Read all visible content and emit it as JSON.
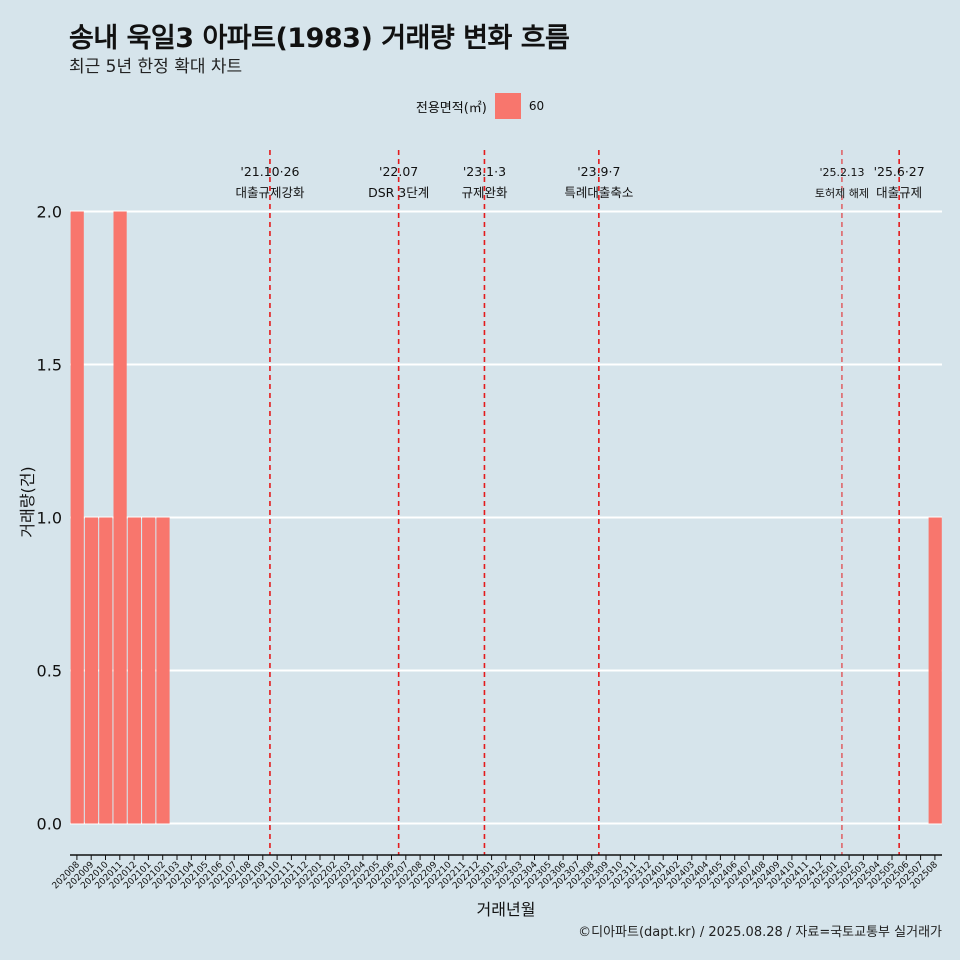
{
  "title": "송내 욱일3 아파트(1983) 거래량 변화 흐름",
  "subtitle": "최근 5년 한정 확대 차트",
  "caption": "©디아파트(dapt.kr) / 2025.08.28 / 자료=국토교통부 실거래가",
  "colors": {
    "bar": "#f8766d",
    "background": "#d6e4eb",
    "event_line": "#e41a1c",
    "grid": "#ffffff"
  },
  "chart_data": {
    "type": "bar",
    "xlabel": "거래년월",
    "ylabel": "거래량(건)",
    "ylim": [
      0,
      2
    ],
    "yticks": [
      0.0,
      0.5,
      1.0,
      1.5,
      2.0
    ],
    "legend": {
      "title": "전용면적(㎡)",
      "entries": [
        "60"
      ],
      "placement": "top"
    },
    "categories": [
      "202008",
      "202009",
      "202010",
      "202011",
      "202012",
      "202101",
      "202102",
      "202103",
      "202104",
      "202105",
      "202106",
      "202107",
      "202108",
      "202109",
      "202110",
      "202111",
      "202112",
      "202201",
      "202202",
      "202203",
      "202204",
      "202205",
      "202206",
      "202207",
      "202208",
      "202209",
      "202210",
      "202211",
      "202212",
      "202301",
      "202302",
      "202303",
      "202304",
      "202305",
      "202306",
      "202307",
      "202308",
      "202309",
      "202310",
      "202311",
      "202312",
      "202401",
      "202402",
      "202403",
      "202404",
      "202405",
      "202406",
      "202407",
      "202408",
      "202409",
      "202410",
      "202411",
      "202412",
      "202501",
      "202502",
      "202503",
      "202504",
      "202505",
      "202506",
      "202507",
      "202508"
    ],
    "series": [
      {
        "name": "60",
        "values": [
          2,
          1,
          1,
          2,
          1,
          1,
          1,
          0,
          0,
          0,
          0,
          0,
          0,
          0,
          0,
          0,
          0,
          0,
          0,
          0,
          0,
          0,
          0,
          0,
          0,
          0,
          0,
          0,
          0,
          0,
          0,
          0,
          0,
          0,
          0,
          0,
          0,
          0,
          0,
          0,
          0,
          0,
          0,
          0,
          0,
          0,
          0,
          0,
          0,
          0,
          0,
          0,
          0,
          0,
          0,
          0,
          0,
          0,
          0,
          0,
          1
        ]
      }
    ],
    "events": [
      {
        "date": "'21.10·26",
        "label": "대출규제강화",
        "position": 13.5,
        "dashed_thin": false
      },
      {
        "date": "'22.07",
        "label": "DSR 3단계",
        "position": 22.5,
        "dashed_thin": false
      },
      {
        "date": "'23.1·3",
        "label": "규제완화",
        "position": 28.5,
        "dashed_thin": false
      },
      {
        "date": "'23.9·7",
        "label": "특례대출축소",
        "position": 36.5,
        "dashed_thin": false
      },
      {
        "date": "'25.2.13",
        "label": "토허제 해제",
        "position": 53.5,
        "dashed_thin": true
      },
      {
        "date": "'25.6·27",
        "label": "대출규제",
        "position": 57.5,
        "dashed_thin": false
      }
    ]
  }
}
